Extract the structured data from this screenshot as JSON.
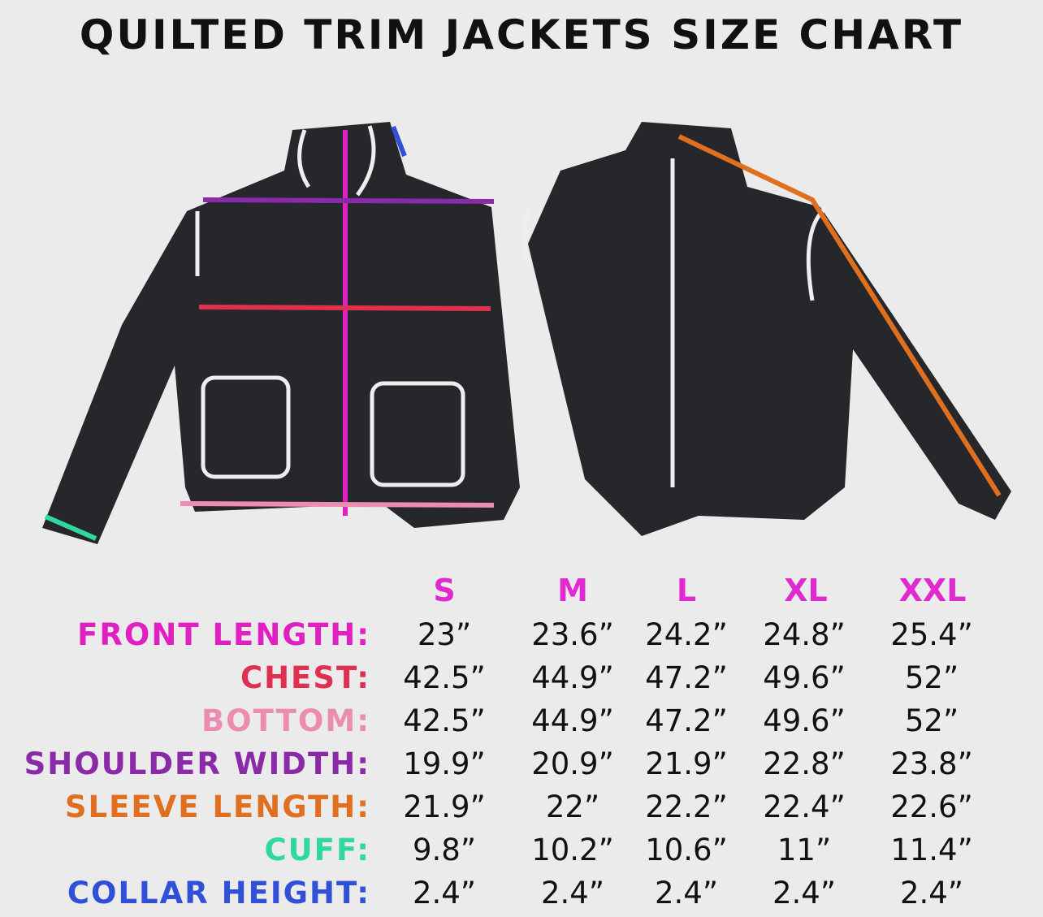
{
  "title": "QUILTED TRIM JACKETS SIZE CHART",
  "sizes": [
    "S",
    "M",
    "L",
    "XL",
    "XXL"
  ],
  "colors": {
    "size_header": "#e02ad0",
    "front_length": "#e020c0",
    "chest": "#e0304f",
    "bottom": "#ec8cb0",
    "shoulder_width": "#8a2aa8",
    "sleeve_length": "#e07020",
    "cuff": "#30d8a0",
    "collar_height": "#3050d8"
  },
  "rows": [
    {
      "label": "FRONT LENGTH:",
      "values": [
        "23”",
        "23.6”",
        "24.2”",
        "24.8”",
        "25.4”"
      ]
    },
    {
      "label": "CHEST:",
      "values": [
        "42.5”",
        "44.9”",
        "47.2”",
        "49.6”",
        "52”"
      ]
    },
    {
      "label": "BOTTOM:",
      "values": [
        "42.5”",
        "44.9”",
        "47.2”",
        "49.6”",
        "52”"
      ]
    },
    {
      "label": "SHOULDER WIDTH:",
      "values": [
        "19.9”",
        "20.9”",
        "21.9”",
        "22.8”",
        "23.8”"
      ]
    },
    {
      "label": "SLEEVE LENGTH:",
      "values": [
        "21.9”",
        "22”",
        "22.2”",
        "22.4”",
        "22.6”"
      ]
    },
    {
      "label": "CUFF:",
      "values": [
        "9.8”",
        "10.2”",
        "10.6”",
        "11”",
        "11.4”"
      ]
    },
    {
      "label": "COLLAR HEIGHT:",
      "values": [
        "2.4”",
        "2.4”",
        "2.4”",
        "2.4”",
        "2.4”"
      ]
    }
  ]
}
